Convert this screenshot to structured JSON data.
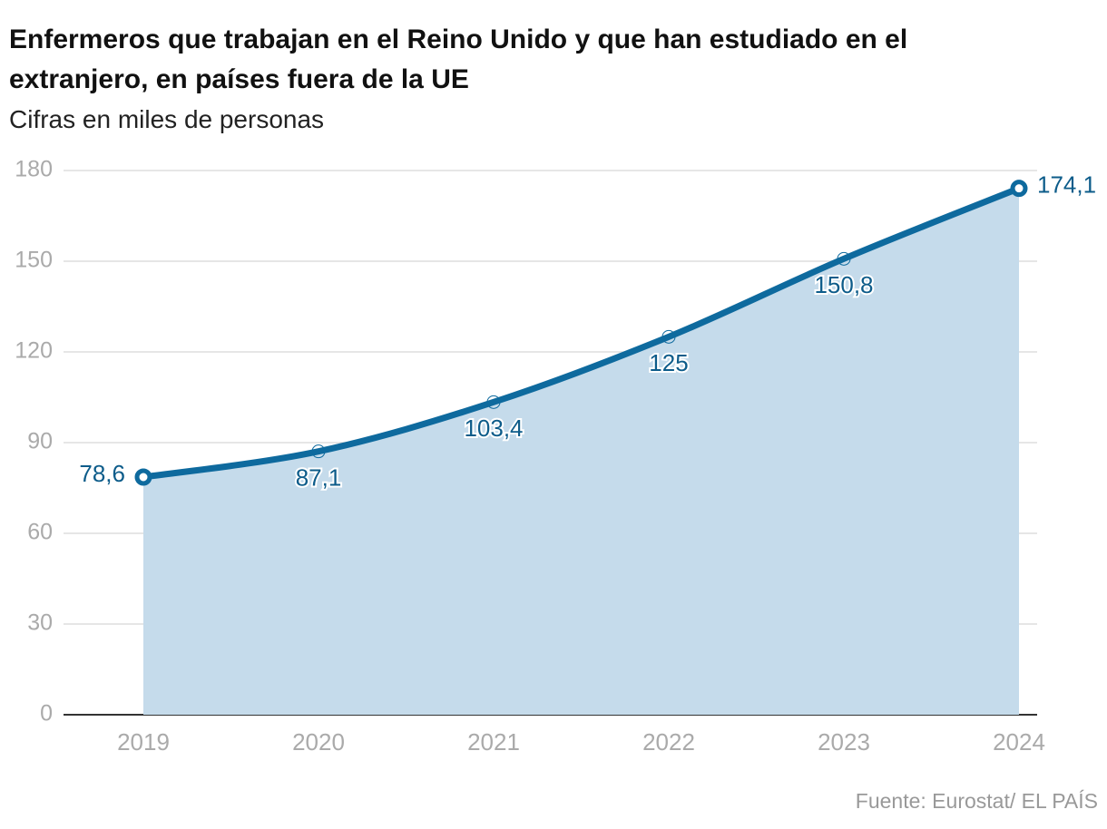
{
  "chart_data": {
    "type": "area-line",
    "title": "Enfermeros que trabajan en el Reino Unido y que han estudiado en el extranjero, en países fuera de la UE",
    "subtitle": "Cifras en miles de personas",
    "source": "Fuente: Eurostat/ EL PAÍS",
    "categories": [
      "2019",
      "2020",
      "2021",
      "2022",
      "2023",
      "2024"
    ],
    "values": [
      78.6,
      87.1,
      103.4,
      125,
      150.8,
      174.1
    ],
    "value_labels": [
      "78,6",
      "87,1",
      "103,4",
      "125",
      "150,8",
      "174,1"
    ],
    "color": "#0e6a9e",
    "area_color": "#c5dbeb",
    "ylim": [
      0,
      180
    ],
    "yticks": [
      0,
      30,
      60,
      90,
      120,
      150,
      180
    ],
    "grid": true
  }
}
